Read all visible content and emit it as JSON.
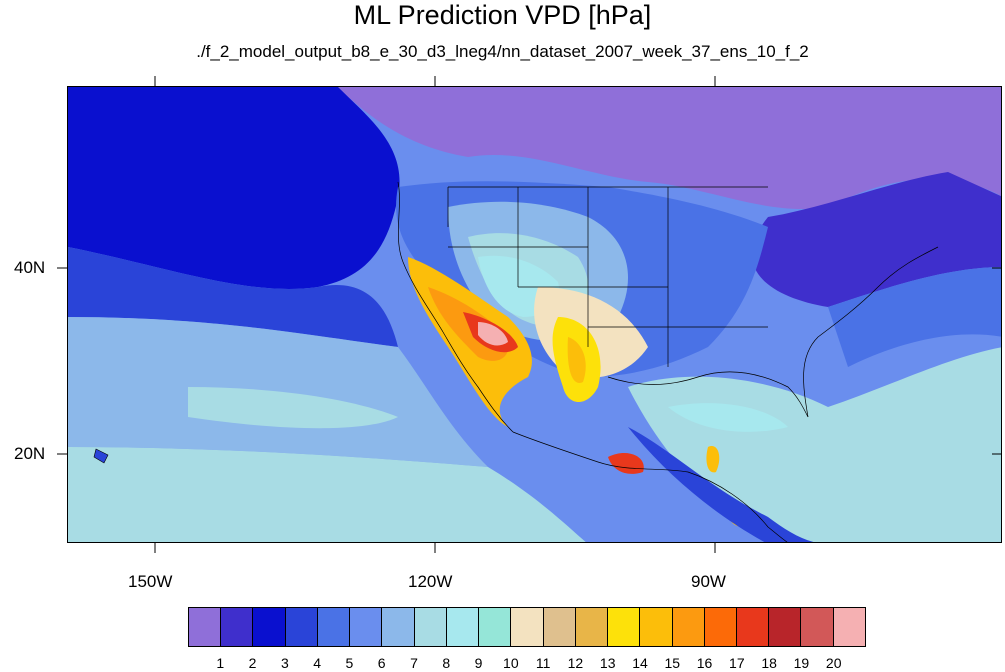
{
  "title": "ML Prediction VPD [hPa]",
  "subtitle": "./f_2_model_output_b8_e_30_d3_lneg4/nn_dataset_2007_week_37_ens_10_f_2",
  "axes": {
    "lon_labels": [
      "150W",
      "120W",
      "90W"
    ],
    "lat_labels": [
      "40N",
      "20N"
    ]
  },
  "colorbar": {
    "labels": [
      "1",
      "2",
      "3",
      "4",
      "5",
      "6",
      "7",
      "8",
      "9",
      "10",
      "11",
      "12",
      "13",
      "14",
      "15",
      "16",
      "17",
      "18",
      "19",
      "20"
    ],
    "colors": [
      "#8f6fd9",
      "#3f2fcc",
      "#0a10cf",
      "#2a44d8",
      "#4a72e6",
      "#6a8eee",
      "#8cb8ea",
      "#a8dce4",
      "#a7e8ee",
      "#95e6d8",
      "#f3e2c0",
      "#dfc08e",
      "#e8b548",
      "#fde10a",
      "#fcbe0a",
      "#fc9a10",
      "#fc6a08",
      "#e8381c",
      "#b8252a",
      "#d25858",
      "#f5b0b2"
    ]
  }
}
